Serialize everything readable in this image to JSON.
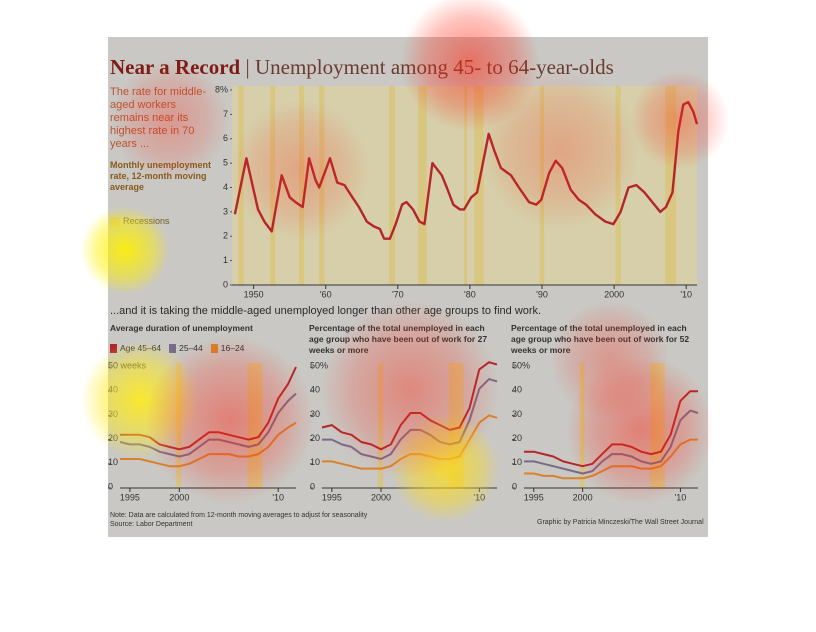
{
  "header": {
    "title": "Near a Record",
    "separator": "|",
    "subtitle": "Unemployment among 45- to 64-year-olds"
  },
  "intro": "The rate for middle-aged workers remains near its highest rate in 70 years ...",
  "subheading": "...and it is taking the middle-aged unemployed longer than other age groups to find work.",
  "footer": {
    "note": "Note: Data are calculated from 12-month moving averages to adjust for seasonality",
    "source": "Source: Labor Department",
    "credit": "Graphic by Patricia Minczeski/The Wall Street Journal"
  },
  "chart_data": [
    {
      "type": "line",
      "description": "Monthly unemployment rate, 12-month moving average",
      "recession_label": "Recessions",
      "x": [
        1947.4,
        1949.0,
        1950.6,
        1951.5,
        1952.5,
        1953.9,
        1955.0,
        1955.8,
        1956.8,
        1957.7,
        1958.6,
        1959.1,
        1960.6,
        1961.6,
        1962.6,
        1963.7,
        1964.6,
        1965.7,
        1966.7,
        1967.5,
        1968.1,
        1968.9,
        1969.7,
        1970.6,
        1971.2,
        1972.1,
        1973.0,
        1973.7,
        1974.8,
        1976.1,
        1976.8,
        1977.7,
        1978.6,
        1979.2,
        1980.2,
        1981.0,
        1982.6,
        1983.4,
        1984.3,
        1985.7,
        1986.8,
        1988.2,
        1989.2,
        1989.9,
        1991.0,
        1991.9,
        1992.8,
        1994.0,
        1995.1,
        1996.1,
        1997.4,
        1998.8,
        1999.9,
        2000.9,
        2002.0,
        2003.1,
        2004.2,
        2005.3,
        2006.4,
        2007.2,
        2008.1,
        2008.9,
        2009.6,
        2010.3,
        2011.0,
        2011.5
      ],
      "values": [
        2.9,
        5.2,
        3.1,
        2.6,
        2.2,
        4.5,
        3.6,
        3.4,
        3.2,
        5.2,
        4.3,
        4.0,
        5.2,
        4.2,
        4.1,
        3.6,
        3.2,
        2.6,
        2.4,
        2.3,
        1.9,
        1.9,
        2.5,
        3.3,
        3.4,
        3.1,
        2.6,
        2.5,
        5.0,
        4.5,
        4.0,
        3.3,
        3.1,
        3.1,
        3.6,
        3.8,
        6.2,
        5.5,
        4.8,
        4.5,
        4.0,
        3.4,
        3.3,
        3.5,
        4.6,
        5.1,
        4.8,
        3.9,
        3.5,
        3.3,
        2.9,
        2.6,
        2.5,
        3.0,
        4.0,
        4.1,
        3.8,
        3.4,
        3.0,
        3.2,
        3.8,
        6.3,
        7.4,
        7.5,
        7.1,
        6.6
      ],
      "color": "#b3262a",
      "recession_color": "#d8c47c",
      "recessions": [
        [
          1947.9,
          1948.6
        ],
        [
          1952.3,
          1953.0
        ],
        [
          1956.3,
          1957.0
        ],
        [
          1959.1,
          1959.8
        ],
        [
          1968.8,
          1969.6
        ],
        [
          1972.8,
          1974.0
        ],
        [
          1979.2,
          1979.6
        ],
        [
          1980.6,
          1981.9
        ],
        [
          1989.7,
          1990.3
        ],
        [
          2000.2,
          2000.9
        ],
        [
          2007.1,
          2008.6
        ]
      ],
      "xlim": [
        1947,
        2011.5
      ],
      "ylim": [
        0,
        8
      ],
      "xticks": [
        {
          "value": 1950,
          "label": "1950"
        },
        {
          "value": 1960,
          "label": "'60"
        },
        {
          "value": 1970,
          "label": "'70"
        },
        {
          "value": 1980,
          "label": "'80"
        },
        {
          "value": 1990,
          "label": "'90"
        },
        2000,
        {
          "value": 2010,
          "label": "'10"
        }
      ],
      "yticks": [
        0,
        1,
        2,
        3,
        4,
        5,
        6,
        7,
        {
          "value": 8,
          "label": "8%"
        }
      ]
    },
    {
      "type": "line",
      "title": "Average duration of unemployment",
      "x": [
        1994,
        1995,
        1996,
        1997,
        1998,
        1999,
        2000,
        2001,
        2002,
        2003,
        2004,
        2005,
        2006,
        2007,
        2008,
        2009,
        2010,
        2011,
        2011.8
      ],
      "series": [
        {
          "name": "Age 45–64",
          "color": "#b3262a",
          "values": [
            22,
            22,
            22,
            21,
            18,
            17,
            16,
            17,
            20,
            23,
            23,
            22,
            21,
            20,
            21,
            27,
            37,
            43,
            50
          ]
        },
        {
          "name": "25–44",
          "color": "#7a6a8a",
          "values": [
            19,
            18,
            18,
            17,
            15,
            14,
            13,
            14,
            17,
            20,
            20,
            19,
            18,
            17,
            18,
            23,
            31,
            36,
            39
          ]
        },
        {
          "name": "16–24",
          "color": "#d9822b",
          "values": [
            12,
            12,
            12,
            11,
            10,
            9,
            9,
            10,
            12,
            14,
            14,
            14,
            13,
            13,
            14,
            17,
            22,
            25,
            27
          ]
        }
      ],
      "recession_color": "#d8c47c",
      "recessions": [
        [
          1999.7,
          2000.2
        ],
        [
          2006.9,
          2008.4
        ]
      ],
      "xlim": [
        1994,
        2011.8
      ],
      "ylim": [
        0,
        50
      ],
      "xticks": [
        1995,
        2000,
        {
          "value": 2010,
          "label": "'10"
        }
      ],
      "yticks": [
        0,
        10,
        20,
        30,
        40,
        {
          "value": 50,
          "label": "50 weeks"
        }
      ]
    },
    {
      "type": "line",
      "title": "Percentage of the total unemployed in each age group who have been out of work for 27 weeks or more",
      "x": [
        1994,
        1995,
        1996,
        1997,
        1998,
        1999,
        2000,
        2001,
        2002,
        2003,
        2004,
        2005,
        2006,
        2007,
        2008,
        2009,
        2010,
        2011,
        2011.8
      ],
      "series": [
        {
          "color": "#b3262a",
          "values": [
            25,
            26,
            23,
            22,
            19,
            18,
            16,
            18,
            26,
            31,
            31,
            28,
            26,
            24,
            25,
            33,
            49,
            52,
            51
          ]
        },
        {
          "color": "#7a6a8a",
          "values": [
            20,
            20,
            18,
            17,
            14,
            13,
            12,
            14,
            20,
            24,
            24,
            22,
            19,
            18,
            19,
            28,
            41,
            45,
            44
          ]
        },
        {
          "color": "#d9822b",
          "values": [
            11,
            11,
            10,
            9,
            8,
            8,
            8,
            9,
            12,
            14,
            14,
            13,
            12,
            12,
            13,
            20,
            27,
            30,
            29
          ]
        }
      ],
      "recession_color": "#d8c47c",
      "recessions": [
        [
          1999.7,
          2000.2
        ],
        [
          2006.9,
          2008.4
        ]
      ],
      "xlim": [
        1994,
        2011.8
      ],
      "ylim": [
        0,
        50
      ],
      "xticks": [
        1995,
        2000,
        {
          "value": 2010,
          "label": "'10"
        }
      ],
      "yticks": [
        0,
        10,
        20,
        30,
        40,
        {
          "value": 50,
          "label": "50%"
        }
      ]
    },
    {
      "type": "line",
      "title": "Percentage of the total unemployed in each age group who have been out of work for 52 weeks or more",
      "x": [
        1994,
        1995,
        1996,
        1997,
        1998,
        1999,
        2000,
        2001,
        2002,
        2003,
        2004,
        2005,
        2006,
        2007,
        2008,
        2009,
        2010,
        2011,
        2011.8
      ],
      "series": [
        {
          "color": "#b3262a",
          "values": [
            15,
            15,
            14,
            13,
            11,
            10,
            9,
            10,
            14,
            18,
            18,
            17,
            15,
            14,
            15,
            22,
            36,
            40,
            40
          ]
        },
        {
          "color": "#7a6a8a",
          "values": [
            11,
            11,
            10,
            9,
            8,
            7,
            6,
            7,
            11,
            14,
            14,
            13,
            11,
            10,
            11,
            17,
            28,
            32,
            31
          ]
        },
        {
          "color": "#d9822b",
          "values": [
            6,
            6,
            5,
            5,
            4,
            4,
            4,
            5,
            7,
            9,
            9,
            9,
            8,
            8,
            9,
            13,
            18,
            20,
            20
          ]
        }
      ],
      "recession_color": "#d8c47c",
      "recessions": [
        [
          1999.7,
          2000.2
        ],
        [
          2006.9,
          2008.4
        ]
      ],
      "xlim": [
        1994,
        2011.8
      ],
      "ylim": [
        0,
        50
      ],
      "xticks": [
        1995,
        2000,
        {
          "value": 2010,
          "label": "'10"
        }
      ],
      "yticks": [
        0,
        10,
        20,
        30,
        40,
        {
          "value": 50,
          "label": "50%"
        }
      ]
    }
  ]
}
